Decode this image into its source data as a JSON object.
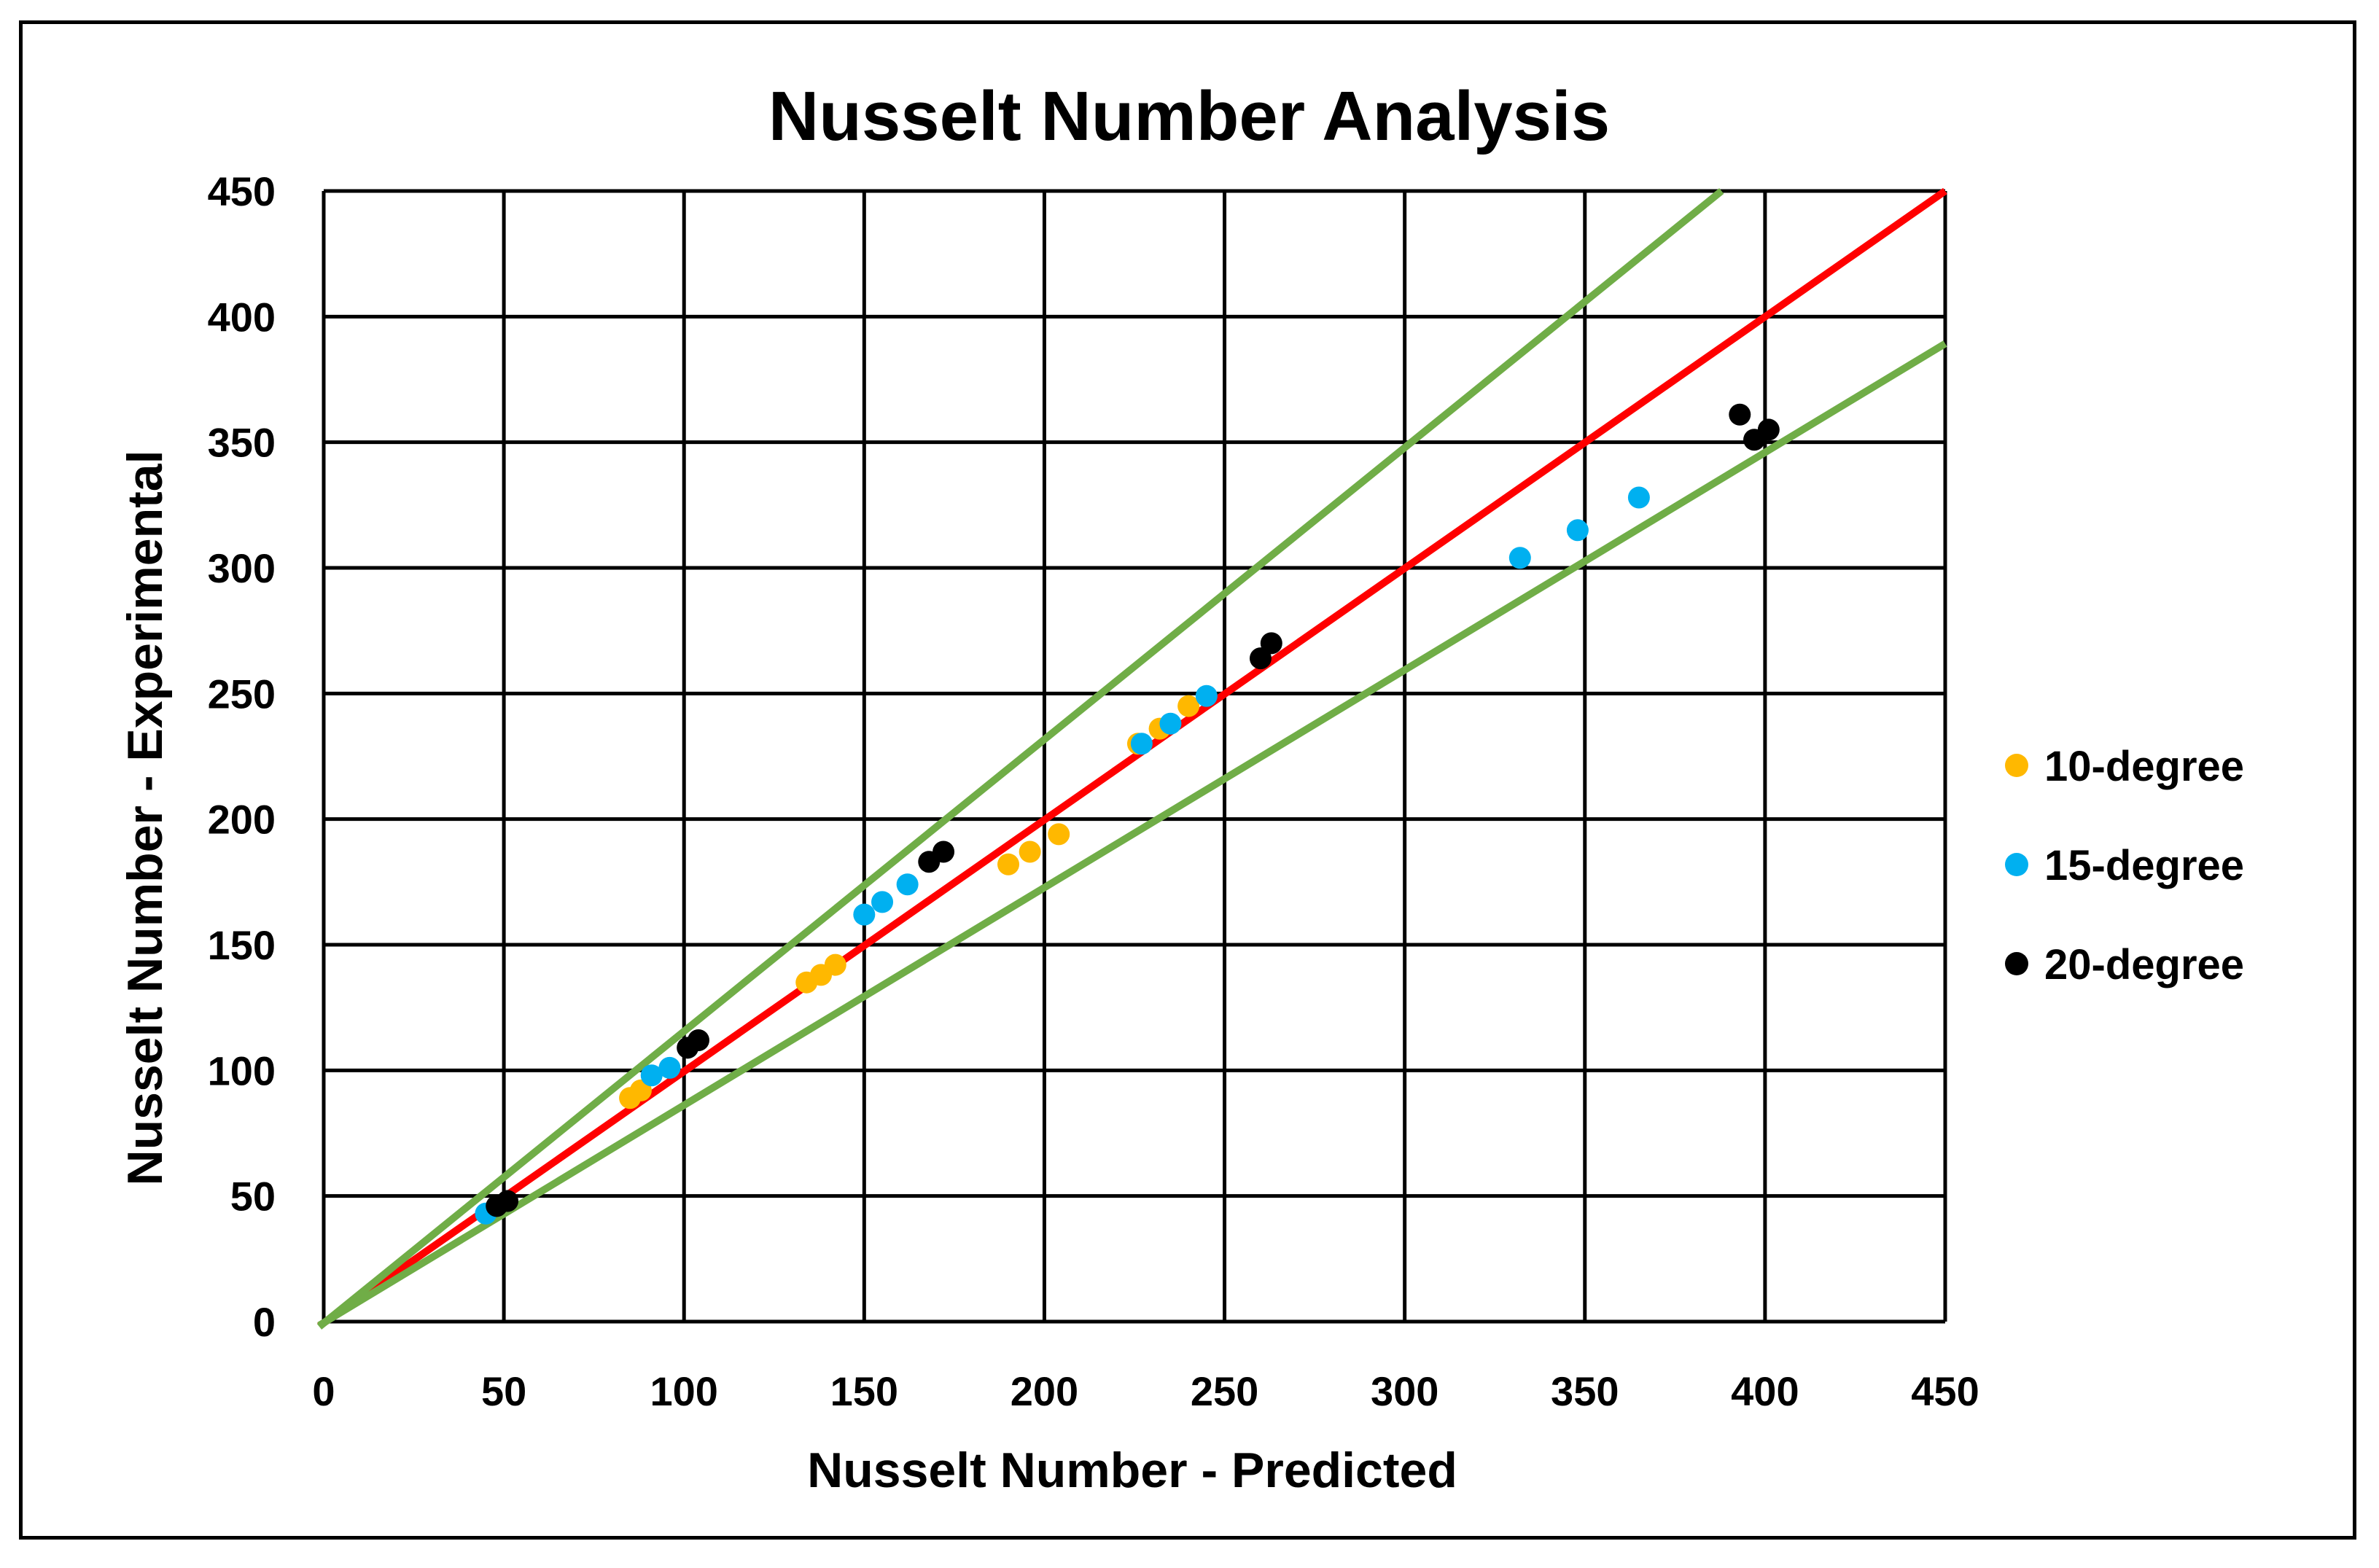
{
  "chart_data": {
    "type": "scatter",
    "title": "Nusselt Number Analysis",
    "xlabel": "Nusselt Number - Predicted",
    "ylabel": "Nusselt Number - Experimental",
    "xlim": [
      0,
      450
    ],
    "ylim": [
      0,
      450
    ],
    "xticks": [
      "0",
      "50",
      "100",
      "150",
      "200",
      "250",
      "300",
      "350",
      "400",
      "450"
    ],
    "yticks": [
      "0",
      "50",
      "100",
      "150",
      "200",
      "250",
      "300",
      "350",
      "400",
      "450"
    ],
    "grid": true,
    "legend_position": "right",
    "series": [
      {
        "name": "10-degree",
        "color": "#FFB800",
        "points": [
          [
            85,
            89
          ],
          [
            88,
            92
          ],
          [
            134,
            135
          ],
          [
            138,
            138
          ],
          [
            142,
            142
          ],
          [
            190,
            182
          ],
          [
            196,
            187
          ],
          [
            204,
            194
          ],
          [
            226,
            230
          ],
          [
            232,
            236
          ],
          [
            240,
            245
          ]
        ]
      },
      {
        "name": "15-degree",
        "color": "#00B0F0",
        "points": [
          [
            45,
            43
          ],
          [
            91,
            98
          ],
          [
            96,
            101
          ],
          [
            150,
            162
          ],
          [
            155,
            167
          ],
          [
            162,
            174
          ],
          [
            227,
            230
          ],
          [
            235,
            238
          ],
          [
            245,
            249
          ],
          [
            332,
            304
          ],
          [
            348,
            315
          ],
          [
            365,
            328
          ]
        ]
      },
      {
        "name": "20-degree",
        "color": "#000000",
        "points": [
          [
            48,
            46
          ],
          [
            51,
            48
          ],
          [
            101,
            109
          ],
          [
            104,
            112
          ],
          [
            168,
            183
          ],
          [
            172,
            187
          ],
          [
            260,
            264
          ],
          [
            263,
            270
          ],
          [
            393,
            361
          ],
          [
            397,
            351
          ],
          [
            401,
            355
          ]
        ]
      }
    ],
    "reference_lines": [
      {
        "role": "y = x",
        "color": "#FF0000",
        "slope": 1.0
      },
      {
        "role": "upper bound",
        "color": "#70AD47",
        "slope": 1.16
      },
      {
        "role": "lower bound",
        "color": "#70AD47",
        "slope": 0.865
      }
    ]
  }
}
